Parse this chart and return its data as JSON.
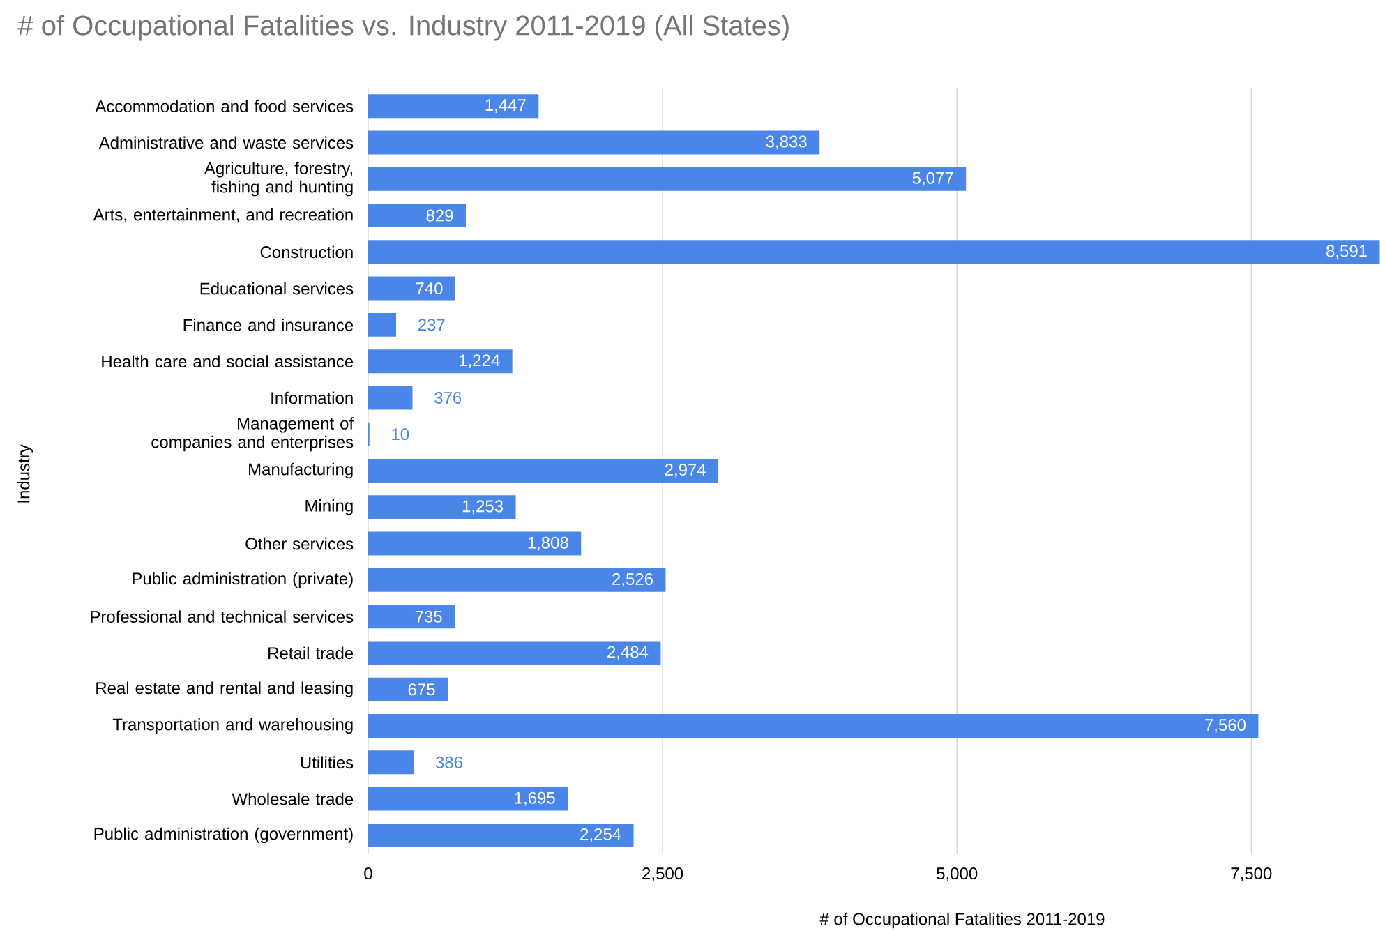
{
  "chart_data": {
    "type": "bar",
    "orientation": "horizontal",
    "title": "# of Occupational Fatalities vs. Industry 2011-2019 (All States)",
    "xlabel": "# of Occupational Fatalities 2011-2019",
    "ylabel": "Industry",
    "categories": [
      "Accommodation and food services",
      "Administrative and waste services",
      "Agriculture, forestry, fishing and hunting",
      "Arts, entertainment, and recreation",
      "Construction",
      "Educational services",
      "Finance and insurance",
      "Health care and social assistance",
      "Information",
      "Management of companies and enterprises",
      "Manufacturing",
      "Mining",
      "Other services",
      "Public administration (private)",
      "Professional and technical services",
      "Retail trade",
      "Real estate and rental and leasing",
      "Transportation and warehousing",
      "Utilities",
      "Wholesale trade",
      "Public administration (government)"
    ],
    "values": [
      1447,
      3833,
      5077,
      829,
      8591,
      740,
      237,
      1224,
      376,
      10,
      2974,
      1253,
      1808,
      2526,
      735,
      2484,
      675,
      7560,
      386,
      1695,
      2254
    ],
    "value_labels": [
      "1,447",
      "3,833",
      "5,077",
      "829",
      "8,591",
      "740",
      "237",
      "1,224",
      "376",
      "10",
      "2,974",
      "1,253",
      "1,808",
      "2,526",
      "735",
      "2,484",
      "675",
      "7,560",
      "386",
      "1,695",
      "2,254"
    ],
    "color": "#4a86e8",
    "grid": "x",
    "xlim": [
      0,
      8600
    ],
    "xticks": [
      0,
      {
        "value": 2500,
        "label": "2,500"
      },
      {
        "value": 5000,
        "label": "5,000"
      },
      {
        "value": 7500,
        "label": "7,500"
      }
    ]
  }
}
